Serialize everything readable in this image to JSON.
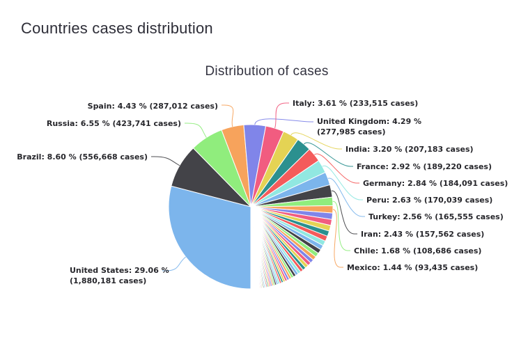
{
  "page": {
    "title": "Countries cases distribution"
  },
  "chart_data": {
    "type": "pie",
    "title": "Distribution of cases",
    "legend": false,
    "start_angle_deg": 180,
    "direction": "clockwise",
    "label_format": "{country}: {percent} % ({cases} cases)",
    "palette": [
      "#7cb5ec",
      "#434348",
      "#90ed7d",
      "#f7a35c",
      "#8085e9",
      "#f15c80",
      "#e4d354",
      "#2b908f",
      "#f45b5b",
      "#91e8e1"
    ],
    "slices": [
      {
        "country": "United States",
        "percent": 29.06,
        "cases": "1,880,181",
        "color": "#7cb5ec",
        "label_lines": [
          "United States: 29.06 %",
          "(1,880,181 cases)"
        ]
      },
      {
        "country": "Brazil",
        "percent": 8.6,
        "cases": "556,668",
        "color": "#434348",
        "label_lines": [
          "Brazil: 8.60 % (556,668 cases)"
        ]
      },
      {
        "country": "Russia",
        "percent": 6.55,
        "cases": "423,741",
        "color": "#90ed7d",
        "label_lines": [
          "Russia: 6.55 % (423,741 cases)"
        ]
      },
      {
        "country": "Spain",
        "percent": 4.43,
        "cases": "287,012",
        "color": "#f7a35c",
        "label_lines": [
          "Spain: 4.43 % (287,012 cases)"
        ]
      },
      {
        "country": "United Kingdom",
        "percent": 4.29,
        "cases": "277,985",
        "color": "#8085e9",
        "label_lines": [
          "United Kingdom: 4.29 %",
          "(277,985 cases)"
        ]
      },
      {
        "country": "Italy",
        "percent": 3.61,
        "cases": "233,515",
        "color": "#f15c80",
        "label_lines": [
          "Italy: 3.61 % (233,515 cases)"
        ]
      },
      {
        "country": "India",
        "percent": 3.2,
        "cases": "207,183",
        "color": "#e4d354",
        "label_lines": [
          "India: 3.20 % (207,183 cases)"
        ]
      },
      {
        "country": "France",
        "percent": 2.92,
        "cases": "189,220",
        "color": "#2b908f",
        "label_lines": [
          "France: 2.92 % (189,220 cases)"
        ]
      },
      {
        "country": "Germany",
        "percent": 2.84,
        "cases": "184,091",
        "color": "#f45b5b",
        "label_lines": [
          "Germany: 2.84 % (184,091 cases)"
        ]
      },
      {
        "country": "Peru",
        "percent": 2.63,
        "cases": "170,039",
        "color": "#91e8e1",
        "label_lines": [
          "Peru: 2.63 % (170,039 cases)"
        ]
      },
      {
        "country": "Turkey",
        "percent": 2.56,
        "cases": "165,555",
        "color": "#7cb5ec",
        "label_lines": [
          "Turkey: 2.56 % (165,555 cases)"
        ]
      },
      {
        "country": "Iran",
        "percent": 2.43,
        "cases": "157,562",
        "color": "#434348",
        "label_lines": [
          "Iran: 2.43 % (157,562 cases)"
        ]
      },
      {
        "country": "Chile",
        "percent": 1.68,
        "cases": "108,686",
        "color": "#90ed7d",
        "label_lines": [
          "Chile: 1.68 % (108,686 cases)"
        ]
      },
      {
        "country": "Mexico",
        "percent": 1.44,
        "cases": "93,435",
        "color": "#f7a35c",
        "label_lines": [
          "Mexico: 1.44 % (93,435 cases)"
        ]
      }
    ],
    "others": {
      "percent": 23.76,
      "labeled": false,
      "description": "many unlabeled thin slices shrinking toward 6 o'clock"
    }
  }
}
